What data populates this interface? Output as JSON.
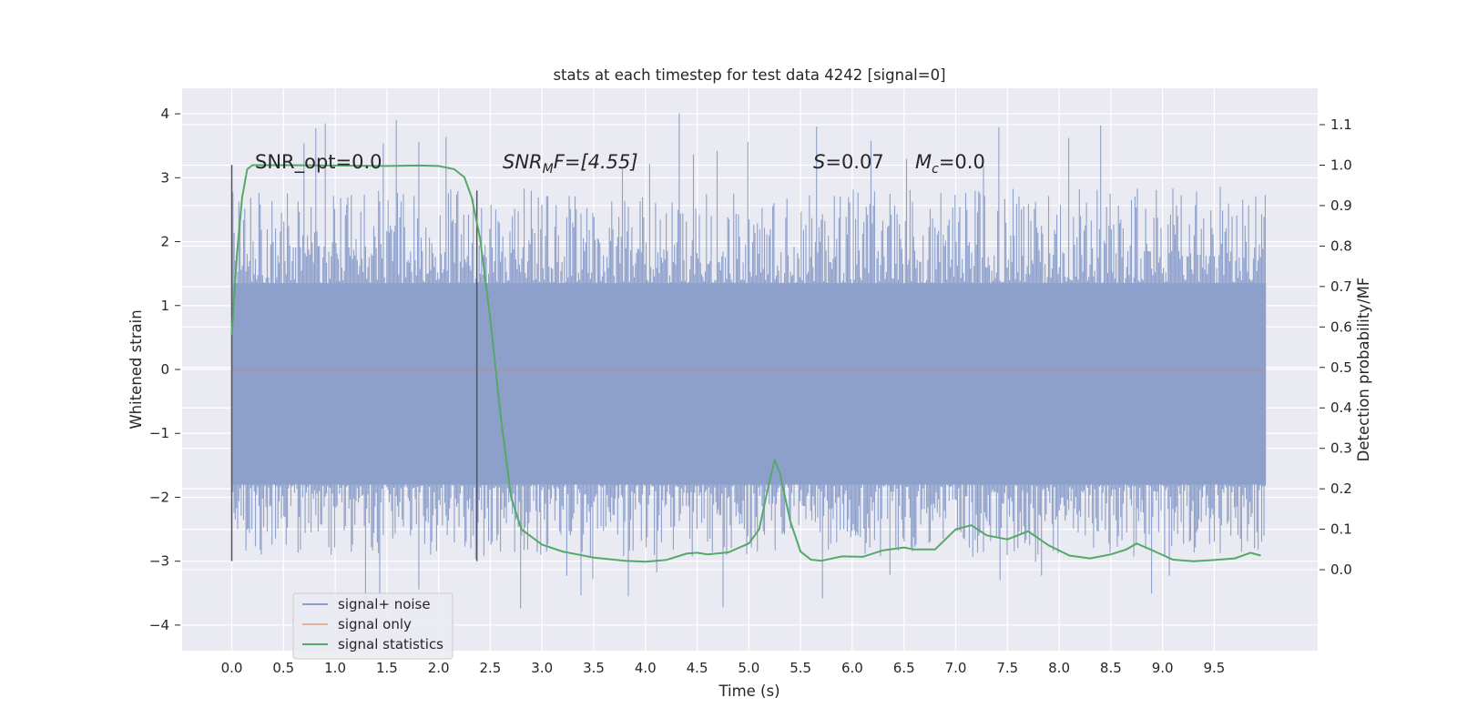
{
  "chart_data": {
    "type": "line",
    "title": "stats at each timestep for test data 4242 [signal=0]",
    "xlabel": "Time (s)",
    "ylabel": "Whitened strain",
    "ylabel_right": "Detection probability/MF",
    "xlim": [
      -0.48,
      10.5
    ],
    "ylim": [
      -4.4,
      4.4
    ],
    "ylim_right": [
      -0.2,
      1.19
    ],
    "x_ticks": [
      "0.0",
      "0.5",
      "1.0",
      "1.5",
      "2.0",
      "2.5",
      "3.0",
      "3.5",
      "4.0",
      "4.5",
      "5.0",
      "5.5",
      "6.0",
      "6.5",
      "7.0",
      "7.5",
      "8.0",
      "8.5",
      "9.0",
      "9.5"
    ],
    "y_ticks": [
      "4",
      "3",
      "2",
      "1",
      "0",
      "−1",
      "−2",
      "−3",
      "−4"
    ],
    "y_right_ticks": [
      "1.1",
      "1.0",
      "0.9",
      "0.8",
      "0.7",
      "0.6",
      "0.5",
      "0.4",
      "0.3",
      "0.2",
      "0.1",
      "0.0"
    ],
    "annotations": {
      "snr_opt": "SNR_opt=0.0",
      "snr_mf_italic": "SNR",
      "snr_mf_sub": "M",
      "snr_mf_rest": "F=[4.55]",
      "s_italic": "S",
      "s_value": "=0.07",
      "mc_italic": "M",
      "mc_sub": "c",
      "mc_value": "=0.0"
    },
    "vlines": [
      {
        "x": 0.0,
        "ymin": -3.0,
        "ymax": 3.2
      },
      {
        "x": 2.37,
        "ymin": -3.0,
        "ymax": 2.8
      }
    ],
    "series": [
      {
        "name": "signal+ noise",
        "color": "#8da0cb",
        "axis": "left",
        "noise": {
          "t_start": 0.0,
          "t_end": 10.0,
          "band_low": -1.8,
          "band_high": 1.35,
          "peak_max": 4.05,
          "peak_min": -3.85
        }
      },
      {
        "name": "signal only",
        "color": "#dd8452",
        "axis": "left",
        "x": [
          0.0,
          10.0
        ],
        "y": [
          0.0,
          0.0
        ]
      },
      {
        "name": "signal statistics",
        "color": "#55a868",
        "axis": "right",
        "x": [
          0.0,
          0.05,
          0.1,
          0.15,
          0.2,
          0.3,
          0.5,
          1.0,
          1.5,
          1.8,
          2.0,
          2.15,
          2.25,
          2.32,
          2.4,
          2.5,
          2.6,
          2.7,
          2.8,
          3.0,
          3.2,
          3.5,
          3.8,
          4.0,
          4.2,
          4.4,
          4.5,
          4.6,
          4.8,
          5.0,
          5.1,
          5.2,
          5.25,
          5.3,
          5.4,
          5.5,
          5.6,
          5.7,
          5.9,
          6.1,
          6.3,
          6.5,
          6.6,
          6.8,
          7.0,
          7.15,
          7.3,
          7.5,
          7.7,
          7.9,
          8.1,
          8.3,
          8.5,
          8.65,
          8.75,
          8.9,
          9.1,
          9.3,
          9.5,
          9.7,
          9.85,
          9.95
        ],
        "y": [
          0.58,
          0.78,
          0.92,
          0.99,
          1.0,
          1.0,
          1.0,
          0.999,
          0.998,
          0.999,
          0.998,
          0.99,
          0.97,
          0.92,
          0.82,
          0.62,
          0.38,
          0.18,
          0.1,
          0.062,
          0.045,
          0.03,
          0.022,
          0.02,
          0.024,
          0.04,
          0.042,
          0.038,
          0.043,
          0.065,
          0.1,
          0.22,
          0.27,
          0.24,
          0.12,
          0.045,
          0.025,
          0.022,
          0.033,
          0.032,
          0.048,
          0.055,
          0.05,
          0.05,
          0.1,
          0.11,
          0.085,
          0.075,
          0.095,
          0.06,
          0.035,
          0.028,
          0.038,
          0.05,
          0.065,
          0.048,
          0.025,
          0.021,
          0.024,
          0.028,
          0.042,
          0.035
        ]
      }
    ],
    "legend": {
      "position": "lower-left"
    },
    "grid": true
  }
}
